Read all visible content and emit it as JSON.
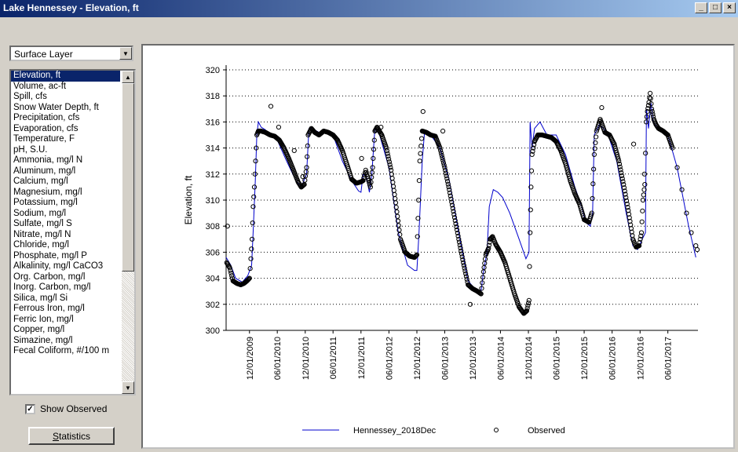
{
  "window": {
    "title": "Lake Hennessey - Elevation, ft",
    "controls": [
      "_",
      "□",
      "×"
    ]
  },
  "layer_select": {
    "value": "Surface Layer"
  },
  "parameters": {
    "selected_index": 0,
    "items": [
      "Elevation, ft",
      "Volume, ac-ft",
      "Spill, cfs",
      "Snow Water Depth, ft",
      "Precipitation, cfs",
      "Evaporation, cfs",
      "Temperature, F",
      "pH, S.U.",
      "Ammonia, mg/l N",
      "Aluminum, mg/l",
      "Calcium, mg/l",
      "Magnesium, mg/l",
      "Potassium, mg/l",
      "Sodium, mg/l",
      "Sulfate, mg/l S",
      "Nitrate, mg/l N",
      "Chloride, mg/l",
      "Phosphate, mg/l P",
      "Alkalinity, mg/l CaCO3",
      "Org. Carbon, mg/l",
      "Inorg. Carbon, mg/l",
      "Silica, mg/l Si",
      "Ferrous Iron, mg/l",
      "Ferric Ion, mg/l",
      "Copper, mg/l",
      "Simazine, mg/l",
      "Fecal Coliform, #/100 m"
    ]
  },
  "show_observed": {
    "label": "Show Observed",
    "checked": true
  },
  "statistics_button": {
    "label": "Statistics"
  },
  "chart_data": {
    "type": "line",
    "ylabel": "Elevation, ft",
    "xlabel": "",
    "ylim": [
      300,
      320
    ],
    "yticks": [
      300,
      302,
      304,
      306,
      308,
      310,
      312,
      314,
      316,
      318,
      320
    ],
    "xlim": [
      "2009-07-01",
      "2017-12-15"
    ],
    "xticks": [
      "12/01/2009",
      "06/01/2010",
      "12/01/2010",
      "06/01/2011",
      "12/01/2011",
      "06/01/2012",
      "12/01/2012",
      "06/01/2013",
      "12/01/2013",
      "06/01/2014",
      "12/01/2014",
      "06/01/2015",
      "12/01/2015",
      "06/01/2016",
      "12/01/2016",
      "06/01/2017"
    ],
    "grid": "horizontal dotted",
    "legend_position": "bottom",
    "colors": {
      "model": "#0000cc",
      "observed": "#000000"
    },
    "series": [
      {
        "name": "Hennessey_2018Dec",
        "style": "line",
        "points": [
          [
            "2009-07-01",
            305.6
          ],
          [
            "2009-08-01",
            305.0
          ],
          [
            "2009-09-01",
            304.0
          ],
          [
            "2009-10-15",
            303.7
          ],
          [
            "2009-11-20",
            304.2
          ],
          [
            "2009-12-15",
            305.0
          ],
          [
            "2009-12-25",
            307.5
          ],
          [
            "2010-01-08",
            311.5
          ],
          [
            "2010-01-18",
            315.0
          ],
          [
            "2010-01-28",
            316.0
          ],
          [
            "2010-02-15",
            315.6
          ],
          [
            "2010-03-15",
            315.4
          ],
          [
            "2010-04-15",
            315.0
          ],
          [
            "2010-06-01",
            314.6
          ],
          [
            "2010-08-01",
            313.0
          ],
          [
            "2010-10-01",
            311.5
          ],
          [
            "2010-11-05",
            311.0
          ],
          [
            "2010-12-10",
            312.0
          ],
          [
            "2010-12-25",
            315.5
          ],
          [
            "2011-01-15",
            315.5
          ],
          [
            "2011-03-01",
            315.2
          ],
          [
            "2011-04-01",
            315.3
          ],
          [
            "2011-06-01",
            315.0
          ],
          [
            "2011-08-01",
            313.0
          ],
          [
            "2011-10-01",
            311.5
          ],
          [
            "2011-11-15",
            310.7
          ],
          [
            "2011-12-01",
            310.6
          ],
          [
            "2011-12-15",
            312.0
          ],
          [
            "2012-01-05",
            311.8
          ],
          [
            "2012-01-25",
            310.6
          ],
          [
            "2012-02-10",
            312.0
          ],
          [
            "2012-03-01",
            315.5
          ],
          [
            "2012-04-01",
            315.0
          ],
          [
            "2012-06-01",
            312.5
          ],
          [
            "2012-08-01",
            307.5
          ],
          [
            "2012-10-01",
            305.0
          ],
          [
            "2012-11-15",
            304.6
          ],
          [
            "2012-12-01",
            304.6
          ],
          [
            "2012-12-15",
            307.5
          ],
          [
            "2013-01-05",
            313.0
          ],
          [
            "2013-01-20",
            315.2
          ],
          [
            "2013-03-01",
            315.0
          ],
          [
            "2013-05-01",
            314.0
          ],
          [
            "2013-07-01",
            311.5
          ],
          [
            "2013-09-01",
            307.5
          ],
          [
            "2013-11-01",
            303.8
          ],
          [
            "2013-12-15",
            303.2
          ],
          [
            "2014-01-25",
            303.0
          ],
          [
            "2014-02-10",
            304.5
          ],
          [
            "2014-03-05",
            306.0
          ],
          [
            "2014-03-20",
            309.5
          ],
          [
            "2014-04-15",
            310.8
          ],
          [
            "2014-05-15",
            310.6
          ],
          [
            "2014-06-15",
            310.2
          ],
          [
            "2014-08-01",
            309.0
          ],
          [
            "2014-10-01",
            307.0
          ],
          [
            "2014-11-15",
            305.5
          ],
          [
            "2014-12-05",
            306.0
          ],
          [
            "2014-12-12",
            316.0
          ],
          [
            "2014-12-25",
            314.0
          ],
          [
            "2015-01-10",
            315.5
          ],
          [
            "2015-02-15",
            316.0
          ],
          [
            "2015-04-01",
            315.0
          ],
          [
            "2015-06-01",
            315.0
          ],
          [
            "2015-08-01",
            313.5
          ],
          [
            "2015-10-01",
            311.0
          ],
          [
            "2015-11-15",
            309.5
          ],
          [
            "2015-12-10",
            308.3
          ],
          [
            "2016-01-10",
            308.0
          ],
          [
            "2016-01-25",
            309.0
          ],
          [
            "2016-02-05",
            315.0
          ],
          [
            "2016-03-10",
            315.8
          ],
          [
            "2016-05-01",
            315.2
          ],
          [
            "2016-07-01",
            313.0
          ],
          [
            "2016-09-01",
            309.0
          ],
          [
            "2016-10-15",
            306.5
          ],
          [
            "2016-11-15",
            306.2
          ],
          [
            "2016-12-15",
            307.0
          ],
          [
            "2017-01-05",
            307.5
          ],
          [
            "2017-01-12",
            317.0
          ],
          [
            "2017-01-25",
            315.5
          ],
          [
            "2017-02-10",
            317.5
          ],
          [
            "2017-02-25",
            316.0
          ],
          [
            "2017-04-01",
            315.5
          ],
          [
            "2017-06-01",
            315.0
          ],
          [
            "2017-08-01",
            312.5
          ],
          [
            "2017-10-15",
            308.0
          ],
          [
            "2017-12-01",
            305.6
          ]
        ]
      },
      {
        "name": "Observed",
        "style": "markers",
        "points": [
          [
            "2009-07-05",
            305.2
          ],
          [
            "2009-07-25",
            304.8
          ],
          [
            "2009-08-15",
            303.8
          ],
          [
            "2009-09-10",
            303.6
          ],
          [
            "2009-10-05",
            303.5
          ],
          [
            "2009-10-25",
            303.6
          ],
          [
            "2009-11-15",
            303.8
          ],
          [
            "2009-12-01",
            304.0
          ],
          [
            "2009-12-10",
            305.5
          ],
          [
            "2009-12-18",
            307.0
          ],
          [
            "2009-12-25",
            309.5
          ],
          [
            "2010-01-02",
            311.0
          ],
          [
            "2010-01-10",
            313.0
          ],
          [
            "2010-01-18",
            315.0
          ],
          [
            "2010-01-28",
            315.3
          ],
          [
            "2010-02-15",
            315.3
          ],
          [
            "2010-03-15",
            315.2
          ],
          [
            "2010-04-15",
            315.0
          ],
          [
            "2010-05-15",
            314.9
          ],
          [
            "2010-06-15",
            314.6
          ],
          [
            "2010-07-15",
            314.0
          ],
          [
            "2010-08-15",
            313.2
          ],
          [
            "2010-09-15",
            312.3
          ],
          [
            "2010-10-15",
            311.4
          ],
          [
            "2010-11-05",
            311.0
          ],
          [
            "2010-11-25",
            311.2
          ],
          [
            "2010-12-10",
            312.5
          ],
          [
            "2010-12-20",
            315.0
          ],
          [
            "2011-01-10",
            315.5
          ],
          [
            "2011-02-01",
            315.2
          ],
          [
            "2011-03-01",
            315.0
          ],
          [
            "2011-04-01",
            315.3
          ],
          [
            "2011-05-01",
            315.2
          ],
          [
            "2011-06-01",
            315.0
          ],
          [
            "2011-07-01",
            314.6
          ],
          [
            "2011-08-01",
            313.8
          ],
          [
            "2011-09-01",
            312.7
          ],
          [
            "2011-10-01",
            311.6
          ],
          [
            "2011-11-01",
            311.3
          ],
          [
            "2011-12-01",
            311.4
          ],
          [
            "2011-12-15",
            311.5
          ],
          [
            "2012-01-01",
            312.3
          ],
          [
            "2012-01-20",
            311.5
          ],
          [
            "2012-02-01",
            311.0
          ],
          [
            "2012-02-15",
            312.5
          ],
          [
            "2012-03-01",
            315.3
          ],
          [
            "2012-03-15",
            315.6
          ],
          [
            "2012-04-15",
            315.0
          ],
          [
            "2012-05-15",
            314.0
          ],
          [
            "2012-06-15",
            312.3
          ],
          [
            "2012-07-15",
            309.8
          ],
          [
            "2012-08-15",
            307.0
          ],
          [
            "2012-09-15",
            306.0
          ],
          [
            "2012-10-15",
            305.7
          ],
          [
            "2012-11-15",
            305.6
          ],
          [
            "2012-12-01",
            305.8
          ],
          [
            "2012-12-12",
            310.0
          ],
          [
            "2012-12-20",
            313.0
          ],
          [
            "2013-01-05",
            315.3
          ],
          [
            "2013-02-01",
            315.2
          ],
          [
            "2013-03-01",
            315.0
          ],
          [
            "2013-04-01",
            314.9
          ],
          [
            "2013-05-01",
            314.0
          ],
          [
            "2013-06-01",
            312.5
          ],
          [
            "2013-07-01",
            310.8
          ],
          [
            "2013-08-01",
            308.9
          ],
          [
            "2013-09-01",
            307.0
          ],
          [
            "2013-10-01",
            305.2
          ],
          [
            "2013-11-01",
            303.5
          ],
          [
            "2013-12-01",
            303.2
          ],
          [
            "2014-01-01",
            303.0
          ],
          [
            "2014-01-25",
            302.8
          ],
          [
            "2014-02-10",
            304.5
          ],
          [
            "2014-02-25",
            305.8
          ],
          [
            "2014-03-15",
            306.3
          ],
          [
            "2014-03-25",
            307.0
          ],
          [
            "2014-04-10",
            307.2
          ],
          [
            "2014-05-01",
            306.6
          ],
          [
            "2014-06-01",
            306.0
          ],
          [
            "2014-07-01",
            305.2
          ],
          [
            "2014-08-01",
            304.0
          ],
          [
            "2014-09-01",
            302.8
          ],
          [
            "2014-10-01",
            301.8
          ],
          [
            "2014-11-01",
            301.3
          ],
          [
            "2014-11-20",
            301.5
          ],
          [
            "2014-12-05",
            302.3
          ],
          [
            "2014-12-12",
            307.5
          ],
          [
            "2014-12-18",
            311.0
          ],
          [
            "2014-12-25",
            313.5
          ],
          [
            "2015-01-10",
            314.5
          ],
          [
            "2015-02-01",
            315.0
          ],
          [
            "2015-03-01",
            315.0
          ],
          [
            "2015-04-01",
            314.9
          ],
          [
            "2015-05-01",
            314.8
          ],
          [
            "2015-06-01",
            314.5
          ],
          [
            "2015-07-01",
            313.8
          ],
          [
            "2015-08-01",
            312.8
          ],
          [
            "2015-09-01",
            311.5
          ],
          [
            "2015-10-01",
            310.5
          ],
          [
            "2015-11-01",
            309.7
          ],
          [
            "2015-12-01",
            308.5
          ],
          [
            "2016-01-01",
            308.3
          ],
          [
            "2016-01-20",
            309.0
          ],
          [
            "2016-02-05",
            313.5
          ],
          [
            "2016-02-20",
            315.3
          ],
          [
            "2016-03-15",
            316.2
          ],
          [
            "2016-04-15",
            315.2
          ],
          [
            "2016-05-15",
            315.0
          ],
          [
            "2016-06-15",
            314.3
          ],
          [
            "2016-07-15",
            313.0
          ],
          [
            "2016-08-15",
            311.2
          ],
          [
            "2016-09-15",
            309.2
          ],
          [
            "2016-10-15",
            307.0
          ],
          [
            "2016-11-05",
            306.4
          ],
          [
            "2016-11-25",
            306.5
          ],
          [
            "2016-12-10",
            307.5
          ],
          [
            "2016-12-20",
            310.0
          ],
          [
            "2017-01-01",
            311.2
          ],
          [
            "2017-01-10",
            316.0
          ],
          [
            "2017-01-18",
            316.8
          ],
          [
            "2017-01-28",
            317.5
          ],
          [
            "2017-02-05",
            318.2
          ],
          [
            "2017-02-15",
            317.0
          ],
          [
            "2017-03-01",
            316.2
          ],
          [
            "2017-03-15",
            315.8
          ],
          [
            "2017-04-01",
            315.5
          ],
          [
            "2017-05-01",
            315.3
          ],
          [
            "2017-06-01",
            315.0
          ],
          [
            "2017-07-01",
            314.0
          ],
          [
            "2017-08-01",
            312.5
          ],
          [
            "2017-09-01",
            310.8
          ],
          [
            "2017-10-01",
            309.0
          ],
          [
            "2017-11-01",
            307.5
          ],
          [
            "2017-12-01",
            306.5
          ],
          [
            "2017-12-10",
            306.2
          ],
          [
            "2009-07-10",
            308.0
          ],
          [
            "2010-04-20",
            317.2
          ],
          [
            "2010-06-10",
            315.6
          ],
          [
            "2010-09-20",
            313.8
          ],
          [
            "2010-11-15",
            311.8
          ],
          [
            "2011-12-05",
            313.2
          ],
          [
            "2012-04-10",
            315.6
          ],
          [
            "2013-01-10",
            316.8
          ],
          [
            "2013-05-20",
            315.3
          ],
          [
            "2013-11-15",
            302.0
          ],
          [
            "2016-03-25",
            317.1
          ],
          [
            "2016-10-20",
            314.3
          ],
          [
            "2016-12-30",
            312.0
          ]
        ]
      }
    ],
    "legend": [
      {
        "label": "Hennessey_2018Dec",
        "marker": "line"
      },
      {
        "label": "Observed",
        "marker": "circle"
      }
    ]
  }
}
